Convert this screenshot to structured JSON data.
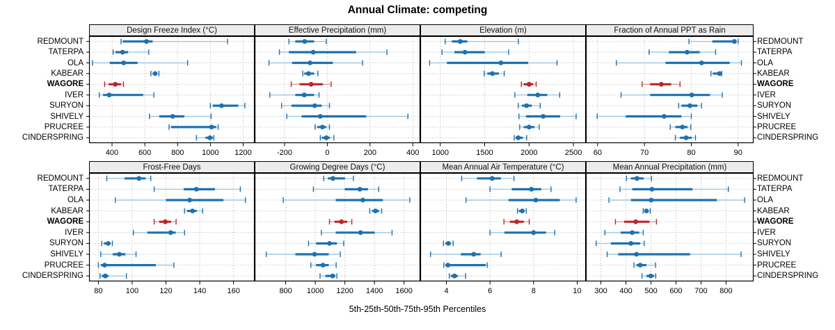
{
  "title": "Annual Climate: competing",
  "caption": "5th-25th-50th-75th-95th Percentiles",
  "colors": {
    "series": "#1d71b1",
    "series_light": "#a2c7e2",
    "highlight": "#bb2529",
    "highlight_light": "#dc9a9b",
    "strip_bg": "#ececec",
    "grid": "#c3c3c3",
    "border": "#000000"
  },
  "chart_data": {
    "type": "scatter",
    "variant": "trellis-dotplot-percentile-intervals",
    "percentiles": [
      5,
      25,
      50,
      75,
      95
    ],
    "legend_position": "none",
    "grid": "dotted",
    "sites": [
      "REDMOUNT",
      "TATERPA",
      "OLA",
      "KABEAR",
      "WAGORE",
      "IVER",
      "SURYON",
      "SHIVELY",
      "PRUCREE",
      "CINDERSPRING"
    ],
    "highlight_site": "WAGORE",
    "panels": [
      {
        "title": "Design Freeze Index (°C)",
        "ticks": [
          400,
          600,
          800,
          1000,
          1200
        ],
        "xlim": [
          260,
          1270
        ],
        "values": [
          [
            455,
            465,
            610,
            648,
            1105
          ],
          [
            407,
            421,
            464,
            498,
            624
          ],
          [
            280,
            386,
            471,
            556,
            861
          ],
          [
            637,
            648,
            663,
            675,
            686
          ],
          [
            355,
            380,
            420,
            455,
            470
          ],
          [
            322,
            345,
            383,
            590,
            655
          ],
          [
            1000,
            1015,
            1068,
            1170,
            1210
          ],
          [
            628,
            688,
            770,
            841,
            1004
          ],
          [
            748,
            760,
            1007,
            1035,
            1047
          ],
          [
            915,
            970,
            997,
            1015,
            1021
          ]
        ]
      },
      {
        "title": "Effective Precipitation (mm)",
        "ticks": [
          -200,
          0,
          200,
          400
        ],
        "xlim": [
          -340,
          435
        ],
        "values": [
          [
            -180,
            -150,
            -106,
            -62,
            -5
          ],
          [
            -224,
            -180,
            -66,
            135,
            279
          ],
          [
            -273,
            -165,
            -81,
            26,
            165
          ],
          [
            -115,
            -108,
            -88,
            -62,
            -44
          ],
          [
            -169,
            -130,
            -76,
            -21,
            18
          ],
          [
            -269,
            -150,
            -108,
            -62,
            -39
          ],
          [
            -214,
            -168,
            -59,
            -26,
            10
          ],
          [
            -190,
            -120,
            -33,
            182,
            377
          ],
          [
            -57,
            -47,
            -23,
            -5,
            10
          ],
          [
            -33,
            -26,
            -5,
            12,
            31
          ]
        ]
      },
      {
        "title": "Elevation (m)",
        "ticks": [
          1000,
          1500,
          2000,
          2500
        ],
        "xlim": [
          775,
          2640
        ],
        "values": [
          [
            1055,
            1130,
            1225,
            1305,
            1880
          ],
          [
            1020,
            1160,
            1278,
            1500,
            1770
          ],
          [
            880,
            1075,
            1683,
            1990,
            2315
          ],
          [
            1495,
            1530,
            1587,
            1660,
            1720
          ],
          [
            1913,
            1940,
            2000,
            2045,
            2080
          ],
          [
            1840,
            1980,
            2098,
            2205,
            2345
          ],
          [
            1878,
            1920,
            1971,
            2030,
            2125
          ],
          [
            1886,
            1965,
            2159,
            2350,
            2530
          ],
          [
            1894,
            1940,
            2000,
            2060,
            2115
          ],
          [
            1833,
            1848,
            1878,
            1930,
            1973
          ]
        ]
      },
      {
        "title": "Fraction of Annual PPT as Rain",
        "ticks": [
          60,
          70,
          80,
          90
        ],
        "xlim": [
          57.5,
          93.3
        ],
        "values": [
          [
            79.5,
            84.5,
            89.2,
            89.6,
            90.0
          ],
          [
            71.0,
            75.2,
            79.1,
            81.8,
            85.2
          ],
          [
            64.0,
            74.5,
            82.2,
            88.2,
            90.7
          ],
          [
            84.2,
            84.6,
            86.0,
            86.3,
            86.5
          ],
          [
            69.5,
            71.2,
            73.6,
            75.7,
            77.6
          ],
          [
            65.0,
            71.2,
            80.1,
            84.0,
            86.6
          ],
          [
            77.3,
            77.9,
            79.7,
            81.3,
            82.2
          ],
          [
            59.9,
            66.0,
            74.2,
            77.9,
            80.0
          ],
          [
            75.5,
            76.6,
            78.1,
            79.2,
            79.9
          ],
          [
            76.6,
            77.6,
            78.9,
            80.1,
            80.9
          ]
        ]
      },
      {
        "title": "Frost-Free Days",
        "ticks": [
          80,
          100,
          120,
          140,
          160
        ],
        "xlim": [
          74.5,
          172.5
        ],
        "values": [
          [
            85,
            95.5,
            104,
            108,
            111
          ],
          [
            113,
            130.5,
            138,
            149,
            164
          ],
          [
            90,
            120,
            134,
            154,
            167
          ],
          [
            131,
            132.5,
            135.7,
            138.2,
            141.7
          ],
          [
            113,
            116,
            119.6,
            123,
            126
          ],
          [
            100.7,
            109,
            122.8,
            125.8,
            131
          ],
          [
            82,
            83.3,
            85.8,
            87.2,
            88.3
          ],
          [
            81.4,
            88.5,
            92.4,
            96,
            102.3
          ],
          [
            80,
            81.5,
            83.7,
            114,
            124.7
          ],
          [
            81,
            82,
            84.1,
            86,
            96.6
          ]
        ]
      },
      {
        "title": "Growing Degree Days (°C)",
        "ticks": [
          800,
          1000,
          1200,
          1400,
          1600
        ],
        "xlim": [
          590,
          1710
        ],
        "values": [
          [
            1057,
            1085,
            1119,
            1200,
            1258
          ],
          [
            987,
            1200,
            1301,
            1356,
            1429
          ],
          [
            783,
            1138,
            1321,
            1457,
            1639
          ],
          [
            1368,
            1384,
            1407,
            1430,
            1449
          ],
          [
            1096,
            1130,
            1177,
            1216,
            1247
          ],
          [
            1041,
            1138,
            1306,
            1402,
            1519
          ],
          [
            954,
            1005,
            1096,
            1146,
            1192
          ],
          [
            668,
            865,
            995,
            1091,
            1169
          ],
          [
            970,
            1005,
            1052,
            1091,
            1141
          ],
          [
            1032,
            1068,
            1117,
            1135,
            1146
          ]
        ]
      },
      {
        "title": "Mean Annual Air Temperature (°C)",
        "ticks": [
          4,
          6,
          8,
          10
        ],
        "xlim": [
          2.8,
          10.4
        ],
        "values": [
          [
            4.7,
            5.4,
            6.1,
            6.5,
            7.1
          ],
          [
            6.0,
            7.0,
            7.9,
            8.35,
            8.8
          ],
          [
            4.9,
            6.85,
            8.1,
            9.2,
            9.95
          ],
          [
            7.26,
            7.32,
            7.48,
            7.58,
            7.66
          ],
          [
            6.64,
            6.91,
            7.23,
            7.55,
            7.8
          ],
          [
            6.0,
            6.66,
            8.0,
            8.57,
            8.97
          ],
          [
            3.86,
            3.95,
            4.09,
            4.2,
            4.31
          ],
          [
            3.27,
            4.66,
            5.25,
            5.57,
            6.51
          ],
          [
            3.88,
            3.95,
            4.07,
            5.8,
            5.87
          ],
          [
            4.13,
            4.2,
            4.37,
            4.52,
            4.88
          ]
        ]
      },
      {
        "title": "Mean Annual Precipitation (mm)",
        "ticks": [
          300,
          400,
          500,
          600,
          700,
          800
        ],
        "xlim": [
          240,
          910
        ],
        "values": [
          [
            402,
            420,
            444,
            471,
            502
          ],
          [
            376,
            425,
            504,
            666,
            809
          ],
          [
            332,
            420,
            501,
            763,
            874
          ],
          [
            469,
            474,
            482,
            490,
            497
          ],
          [
            358,
            393,
            439,
            494,
            522
          ],
          [
            316,
            379,
            425,
            453,
            469
          ],
          [
            281,
            340,
            420,
            457,
            473
          ],
          [
            325,
            369,
            442,
            656,
            860
          ],
          [
            432,
            442,
            457,
            482,
            518
          ],
          [
            464,
            482,
            499,
            513,
            519
          ]
        ]
      }
    ]
  }
}
